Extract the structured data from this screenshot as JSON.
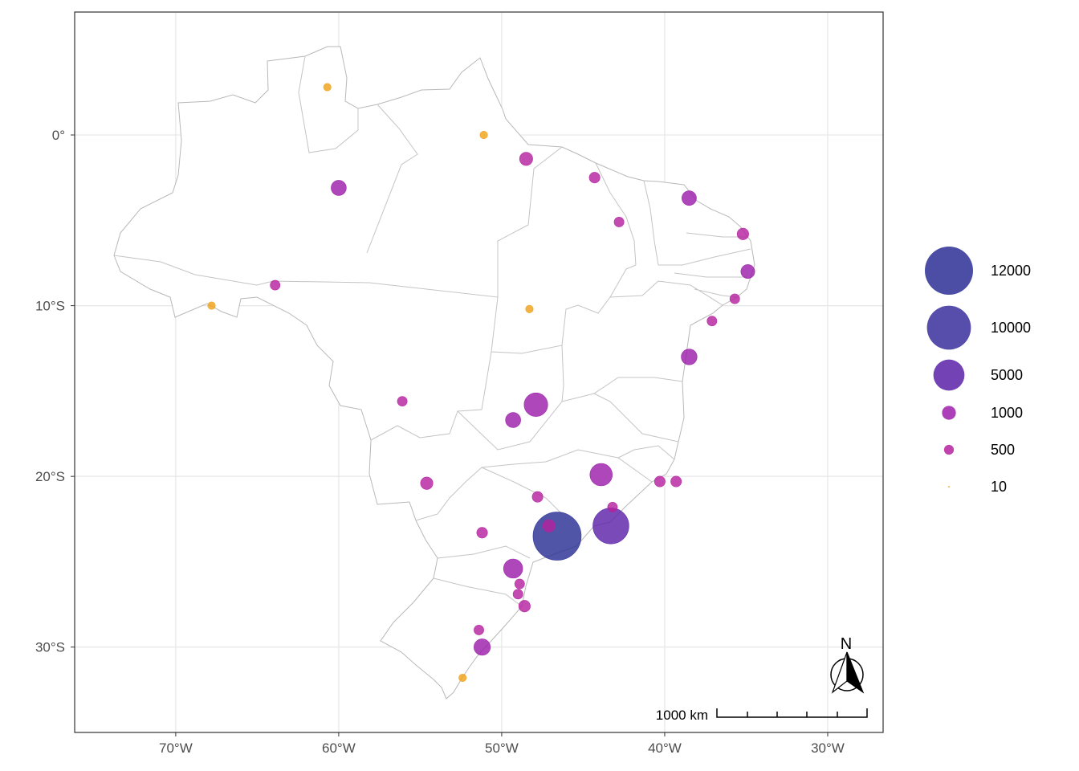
{
  "axes": {
    "x_ticks": [
      "70°W",
      "60°W",
      "50°W",
      "40°W",
      "30°W"
    ],
    "x_values": [
      -70,
      -60,
      -50,
      -40,
      -30
    ],
    "y_ticks": [
      "0°",
      "10°S",
      "20°S",
      "30°S"
    ],
    "y_values": [
      0,
      -10,
      -20,
      -30
    ],
    "xlim": [
      -76.2,
      -26.6
    ],
    "ylim": [
      -35.0,
      7.2
    ],
    "grid": true
  },
  "legend": {
    "placement": "right",
    "entries": [
      {
        "label": "12000",
        "value": 12000,
        "color": "#2b2f94"
      },
      {
        "label": "10000",
        "value": 10000,
        "color": "#3a2e9c"
      },
      {
        "label": "5000",
        "value": 5000,
        "color": "#5b22a8"
      },
      {
        "label": "1000",
        "value": 1000,
        "color": "#9c1fab"
      },
      {
        "label": "500",
        "value": 500,
        "color": "#b5229f"
      },
      {
        "label": "10",
        "value": 10,
        "color": "#f0a21a"
      }
    ]
  },
  "scale_bar": {
    "label": "1000 km"
  },
  "north_arrow": {
    "label": "N"
  },
  "colors": {
    "border": "#b8b8b8",
    "grid": "#e6e6e6",
    "panel_border": "#333333",
    "land": "#ffffff"
  },
  "chart_data": {
    "type": "scatter",
    "title": "",
    "xlabel": "",
    "ylabel": "",
    "size_variable_breaks": [
      10,
      500,
      1000,
      5000,
      10000,
      12000
    ],
    "points": [
      {
        "lon": -46.6,
        "lat": -23.5,
        "value": 12000
      },
      {
        "lon": -43.3,
        "lat": -22.9,
        "value": 6700
      },
      {
        "lon": -43.9,
        "lat": -19.9,
        "value": 2600
      },
      {
        "lon": -47.9,
        "lat": -15.8,
        "value": 2900
      },
      {
        "lon": -49.3,
        "lat": -25.4,
        "value": 1900
      },
      {
        "lon": -60.0,
        "lat": -3.1,
        "value": 1200
      },
      {
        "lon": -38.5,
        "lat": -3.7,
        "value": 1100
      },
      {
        "lon": -38.5,
        "lat": -13.0,
        "value": 1300
      },
      {
        "lon": -49.3,
        "lat": -16.7,
        "value": 1200
      },
      {
        "lon": -51.2,
        "lat": -30.0,
        "value": 1400
      },
      {
        "lon": -48.5,
        "lat": -1.4,
        "value": 900
      },
      {
        "lon": -34.9,
        "lat": -8.0,
        "value": 1000
      },
      {
        "lon": -35.2,
        "lat": -5.8,
        "value": 700
      },
      {
        "lon": -54.6,
        "lat": -20.4,
        "value": 800
      },
      {
        "lon": -40.3,
        "lat": -20.3,
        "value": 600
      },
      {
        "lon": -39.3,
        "lat": -20.3,
        "value": 600
      },
      {
        "lon": -48.6,
        "lat": -27.6,
        "value": 700
      },
      {
        "lon": -47.1,
        "lat": -22.9,
        "value": 800
      },
      {
        "lon": -44.3,
        "lat": -2.5,
        "value": 600
      },
      {
        "lon": -42.8,
        "lat": -5.1,
        "value": 500
      },
      {
        "lon": -35.7,
        "lat": -9.6,
        "value": 500
      },
      {
        "lon": -37.1,
        "lat": -10.9,
        "value": 500
      },
      {
        "lon": -63.9,
        "lat": -8.8,
        "value": 500
      },
      {
        "lon": -67.8,
        "lat": -10.0,
        "value": 300
      },
      {
        "lon": -60.7,
        "lat": 2.8,
        "value": 300
      },
      {
        "lon": -51.1,
        "lat": 0.0,
        "value": 300
      },
      {
        "lon": -48.3,
        "lat": -10.2,
        "value": 300
      },
      {
        "lon": -56.1,
        "lat": -15.6,
        "value": 500
      },
      {
        "lon": -47.8,
        "lat": -21.2,
        "value": 600
      },
      {
        "lon": -51.2,
        "lat": -23.3,
        "value": 600
      },
      {
        "lon": -49.0,
        "lat": -26.9,
        "value": 500
      },
      {
        "lon": -48.9,
        "lat": -26.3,
        "value": 500
      },
      {
        "lon": -43.2,
        "lat": -21.8,
        "value": 500
      },
      {
        "lon": -51.4,
        "lat": -29.0,
        "value": 500
      },
      {
        "lon": -52.4,
        "lat": -31.8,
        "value": 300
      }
    ]
  }
}
